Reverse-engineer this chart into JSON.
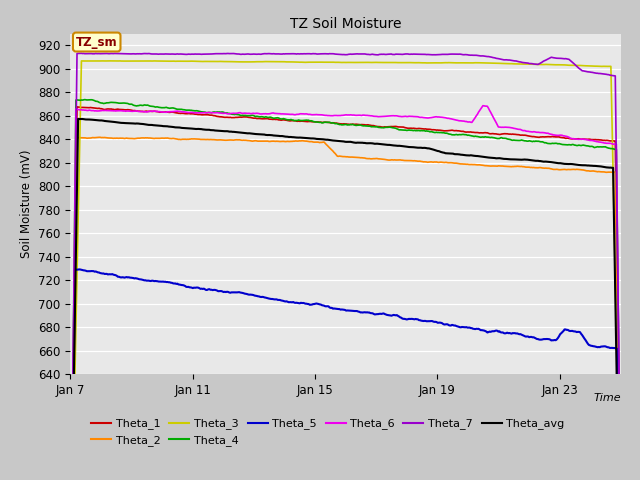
{
  "title": "TZ Soil Moisture",
  "xlabel": "Time",
  "ylabel": "Soil Moisture (mV)",
  "ylim": [
    640,
    930
  ],
  "yticks": [
    640,
    660,
    680,
    700,
    720,
    740,
    760,
    780,
    800,
    820,
    840,
    860,
    880,
    900,
    920
  ],
  "xlim_days": [
    0,
    18
  ],
  "x_tick_labels": [
    "Jan 7",
    "Jan 11",
    "Jan 15",
    "Jan 19",
    "Jan 23"
  ],
  "x_tick_positions": [
    0,
    4,
    8,
    12,
    16
  ],
  "colors": {
    "Theta_1": "#cc0000",
    "Theta_2": "#ff8800",
    "Theta_3": "#cccc00",
    "Theta_4": "#00aa00",
    "Theta_5": "#0000cc",
    "Theta_6": "#ee00ee",
    "Theta_7": "#9900cc",
    "Theta_avg": "#000000"
  },
  "background_color": "#c8c8c8",
  "plot_bg_color": "#e8e8e8",
  "annotation_text": "TZ_sm",
  "annotation_bg": "#ffffcc",
  "annotation_border": "#cc8800"
}
